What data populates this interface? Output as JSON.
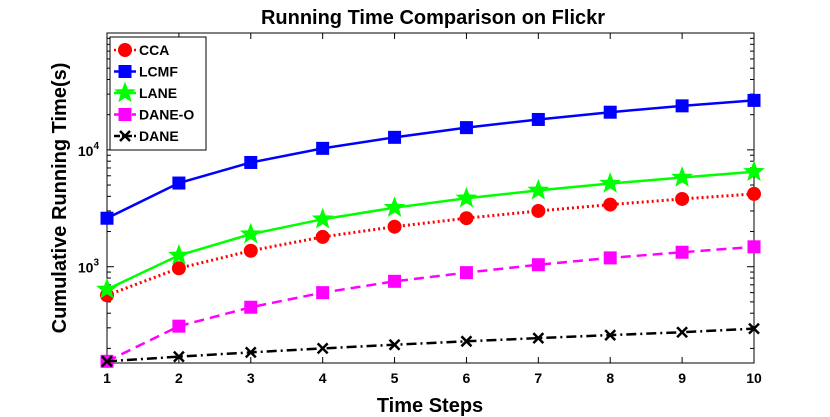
{
  "chart_data": {
    "type": "line",
    "title": "Running Time Comparison on Flickr",
    "xlabel": "Time Steps",
    "ylabel": "Cumulative Running Time(s)",
    "x": [
      1,
      2,
      3,
      4,
      5,
      6,
      7,
      8,
      9,
      10
    ],
    "x_tick_labels": [
      "1",
      "2",
      "3",
      "4",
      "5",
      "6",
      "7",
      "8",
      "9",
      "10"
    ],
    "xlim": [
      1,
      10
    ],
    "yscale": "log",
    "ylim": [
      150,
      100000
    ],
    "y_ticks": [
      {
        "value": 1000,
        "base": "10",
        "exp": "3"
      },
      {
        "value": 10000,
        "base": "10",
        "exp": "4"
      }
    ],
    "grid": false,
    "legend_position": "top-left",
    "series": [
      {
        "name": "CCA",
        "color": "#ff0000",
        "marker": "circle",
        "line": "dotted",
        "values": [
          570,
          970,
          1370,
          1800,
          2200,
          2600,
          3000,
          3400,
          3800,
          4200
        ]
      },
      {
        "name": "LCMF",
        "color": "#0000ff",
        "marker": "square",
        "line": "solid",
        "values": [
          2600,
          5200,
          7800,
          10300,
          12800,
          15500,
          18200,
          21000,
          23800,
          26500
        ]
      },
      {
        "name": "LANE",
        "color": "#00ff00",
        "marker": "star",
        "line": "solid",
        "values": [
          640,
          1250,
          1900,
          2550,
          3200,
          3850,
          4500,
          5150,
          5800,
          6500
        ]
      },
      {
        "name": "DANE-O",
        "color": "#ff00ff",
        "marker": "square",
        "line": "dashed",
        "values": [
          155,
          310,
          450,
          600,
          750,
          890,
          1040,
          1190,
          1330,
          1480
        ]
      },
      {
        "name": "DANE",
        "color": "#000000",
        "marker": "x",
        "line": "dashdot",
        "values": [
          155,
          170,
          185,
          200,
          215,
          230,
          245,
          260,
          275,
          295
        ]
      }
    ]
  }
}
